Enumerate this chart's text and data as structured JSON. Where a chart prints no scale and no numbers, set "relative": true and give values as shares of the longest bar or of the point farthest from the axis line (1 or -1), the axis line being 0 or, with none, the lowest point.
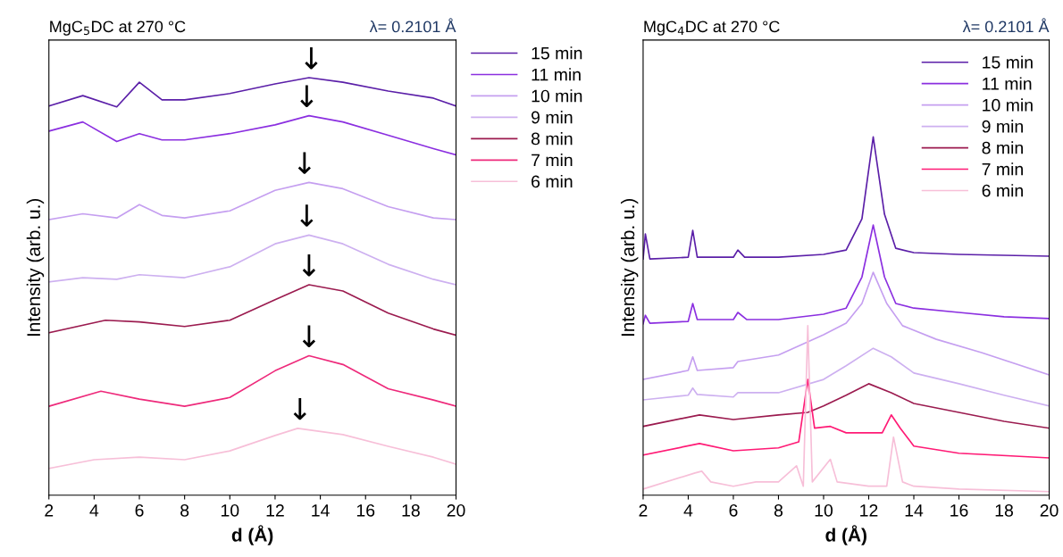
{
  "chart_data": [
    {
      "type": "line",
      "title": "MgC$_{5}$DC at 270 °C",
      "subtitle": "λ= 0.2101 Å",
      "xlabel": "d (Å)",
      "ylabel": "Intensity (arb. u.)",
      "relative": true,
      "xlim": [
        2,
        20
      ],
      "xticks": [
        2,
        4,
        6,
        8,
        10,
        12,
        14,
        16,
        18,
        20
      ],
      "tick_labels": "x",
      "grid": false,
      "legend": "right",
      "line_style": "solid",
      "series": [
        {
          "name": "15 min",
          "color": "#5b1fa8",
          "x": [
            2,
            3.5,
            5,
            6,
            7,
            8,
            10,
            12,
            13.5,
            15,
            17,
            19,
            20
          ],
          "values": [
            0.932,
            0.957,
            0.93,
            0.989,
            0.947,
            0.947,
            0.962,
            0.985,
            1.0,
            0.989,
            0.968,
            0.951,
            0.932
          ]
        },
        {
          "name": "11 min",
          "color": "#8b2fe0",
          "x": [
            2,
            3.5,
            5,
            6,
            7,
            8,
            10,
            12,
            13.5,
            15,
            17,
            19,
            20
          ],
          "values": [
            0.872,
            0.894,
            0.847,
            0.866,
            0.851,
            0.851,
            0.866,
            0.887,
            0.909,
            0.894,
            0.862,
            0.83,
            0.815
          ]
        },
        {
          "name": "10 min",
          "color": "#c59ff0",
          "x": [
            2,
            3.5,
            5,
            6,
            7,
            8,
            10,
            12,
            13.5,
            15,
            17,
            19,
            20
          ],
          "values": [
            0.66,
            0.674,
            0.664,
            0.696,
            0.67,
            0.664,
            0.681,
            0.73,
            0.749,
            0.734,
            0.691,
            0.664,
            0.66
          ]
        },
        {
          "name": "9 min",
          "color": "#cdb0f0",
          "x": [
            2,
            3.5,
            5,
            6,
            8,
            10,
            12,
            13.5,
            15,
            17,
            19,
            20
          ],
          "values": [
            0.511,
            0.521,
            0.517,
            0.528,
            0.521,
            0.547,
            0.602,
            0.623,
            0.602,
            0.553,
            0.517,
            0.504
          ]
        },
        {
          "name": "8 min",
          "color": "#9b1b4f",
          "x": [
            2,
            4.5,
            6,
            8,
            10,
            12,
            13.5,
            15,
            17,
            19,
            20
          ],
          "values": [
            0.389,
            0.419,
            0.415,
            0.404,
            0.419,
            0.468,
            0.504,
            0.489,
            0.436,
            0.398,
            0.383
          ]
        },
        {
          "name": "7 min",
          "color": "#ee2a7b",
          "x": [
            2,
            4.3,
            6,
            8,
            10,
            12,
            13.5,
            15,
            17,
            19,
            20
          ],
          "values": [
            0.213,
            0.249,
            0.23,
            0.213,
            0.234,
            0.298,
            0.334,
            0.313,
            0.255,
            0.228,
            0.213
          ]
        },
        {
          "name": "6 min",
          "color": "#f7bfd8",
          "x": [
            2,
            4,
            6,
            8,
            10,
            12,
            13,
            15,
            17,
            19,
            20
          ],
          "values": [
            0.064,
            0.085,
            0.091,
            0.085,
            0.106,
            0.143,
            0.16,
            0.145,
            0.117,
            0.091,
            0.074
          ]
        }
      ],
      "annotations": [
        {
          "text": "↓",
          "x": 13.6,
          "y": 1.0
        },
        {
          "text": "↓",
          "x": 13.4,
          "y": 0.909
        },
        {
          "text": "↓",
          "x": 13.3,
          "y": 0.749
        },
        {
          "text": "↓",
          "x": 13.4,
          "y": 0.623
        },
        {
          "text": "↓",
          "x": 13.5,
          "y": 0.504
        },
        {
          "text": "↓",
          "x": 13.5,
          "y": 0.334
        },
        {
          "text": "↓",
          "x": 13.1,
          "y": 0.16
        }
      ]
    },
    {
      "type": "line",
      "title": "MgC$_{4}$DC at 270 °C",
      "subtitle": "λ= 0.2101 Å",
      "xlabel": "d (Å)",
      "ylabel": "Intensity (arb. u.)",
      "relative": true,
      "xlim": [
        2,
        20
      ],
      "xticks": [
        2,
        4,
        6,
        8,
        10,
        12,
        14,
        16,
        18,
        20
      ],
      "tick_labels": "x",
      "grid": false,
      "legend": "top right",
      "line_style": "solid",
      "series": [
        {
          "name": "15 min",
          "color": "#5b1fa8",
          "x": [
            2,
            2.1,
            2.3,
            4,
            4.2,
            4.4,
            6,
            6.2,
            6.5,
            8,
            10,
            11,
            11.7,
            12.2,
            12.7,
            13.2,
            14,
            16,
            20
          ],
          "values": [
            0.659,
            0.729,
            0.659,
            0.664,
            0.739,
            0.664,
            0.664,
            0.684,
            0.664,
            0.664,
            0.672,
            0.684,
            0.771,
            1.0,
            0.784,
            0.689,
            0.677,
            0.672,
            0.667
          ]
        },
        {
          "name": "11 min",
          "color": "#8b2fe0",
          "x": [
            2,
            2.1,
            2.3,
            4,
            4.2,
            4.4,
            6,
            6.2,
            6.6,
            8,
            10,
            11,
            11.7,
            12.2,
            12.7,
            13.2,
            14,
            16,
            18,
            20
          ],
          "values": [
            0.478,
            0.502,
            0.48,
            0.485,
            0.535,
            0.49,
            0.49,
            0.51,
            0.49,
            0.49,
            0.505,
            0.522,
            0.609,
            0.754,
            0.609,
            0.535,
            0.522,
            0.51,
            0.498,
            0.493
          ]
        },
        {
          "name": "10 min",
          "color": "#c59ff0",
          "x": [
            2,
            4,
            4.2,
            4.4,
            6,
            6.2,
            8,
            10,
            11,
            11.7,
            12.2,
            12.8,
            13.5,
            15,
            17,
            20
          ],
          "values": [
            0.323,
            0.348,
            0.386,
            0.348,
            0.356,
            0.373,
            0.391,
            0.448,
            0.48,
            0.535,
            0.622,
            0.535,
            0.473,
            0.435,
            0.398,
            0.336
          ]
        },
        {
          "name": "9 min",
          "color": "#cdb0f0",
          "x": [
            2,
            4,
            4.2,
            4.4,
            6,
            6.2,
            8,
            10,
            11,
            12.2,
            13,
            14,
            16,
            18,
            20
          ],
          "values": [
            0.266,
            0.279,
            0.299,
            0.281,
            0.274,
            0.286,
            0.286,
            0.323,
            0.361,
            0.41,
            0.386,
            0.341,
            0.311,
            0.279,
            0.249
          ]
        },
        {
          "name": "8 min",
          "color": "#9b1b4f",
          "x": [
            2,
            4.5,
            6,
            8,
            9.3,
            10,
            11,
            12,
            13,
            14,
            16,
            18,
            20
          ],
          "values": [
            0.192,
            0.224,
            0.211,
            0.224,
            0.231,
            0.249,
            0.279,
            0.311,
            0.286,
            0.256,
            0.231,
            0.206,
            0.187
          ]
        },
        {
          "name": "7 min",
          "color": "#ff1a75",
          "x": [
            2,
            4.5,
            6,
            8,
            8.9,
            9.3,
            9.6,
            10.3,
            11,
            12,
            12.6,
            13,
            13.4,
            14,
            16,
            20
          ],
          "values": [
            0.112,
            0.144,
            0.124,
            0.132,
            0.149,
            0.323,
            0.187,
            0.192,
            0.174,
            0.174,
            0.174,
            0.224,
            0.187,
            0.137,
            0.117,
            0.104
          ]
        },
        {
          "name": "6 min",
          "color": "#f7bfd8",
          "x": [
            2,
            4.3,
            4.6,
            5,
            6,
            7,
            8,
            8.8,
            9.1,
            9.3,
            9.5,
            10.3,
            10.6,
            12,
            12.8,
            13.1,
            13.5,
            14,
            16,
            20
          ],
          "values": [
            0.017,
            0.062,
            0.067,
            0.037,
            0.025,
            0.037,
            0.037,
            0.082,
            0.025,
            0.473,
            0.037,
            0.1,
            0.037,
            0.025,
            0.025,
            0.162,
            0.037,
            0.025,
            0.017,
            0.01
          ]
        }
      ]
    }
  ]
}
